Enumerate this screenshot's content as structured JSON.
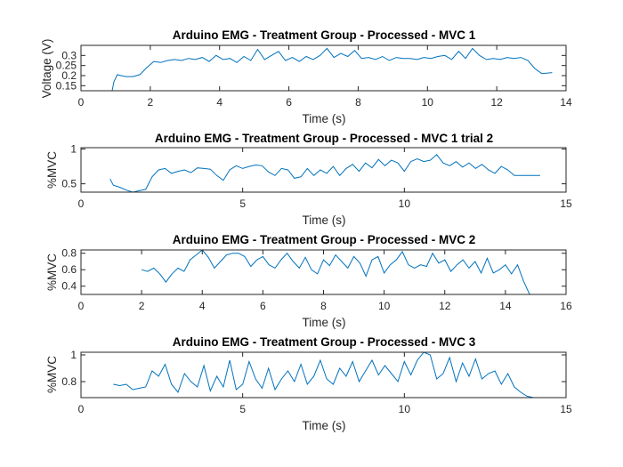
{
  "figure": {},
  "colors": {
    "line": "#0072BD",
    "axis": "#262626",
    "background": "#ffffff"
  },
  "chart_data": [
    {
      "type": "line",
      "title": "Arduino EMG - Treatment Group - Processed - MVC 1",
      "xlabel": "Time (s)",
      "ylabel": "Voltage (V)",
      "xlim": [
        0,
        14
      ],
      "ylim": [
        0.125,
        0.35
      ],
      "xticks": [
        0,
        2,
        4,
        6,
        8,
        10,
        12,
        14
      ],
      "yticks": [
        0.15,
        0.2,
        0.25,
        0.3
      ],
      "ytick_labels": [
        "0.15",
        "0.2",
        "0.25",
        "0.3"
      ],
      "grid": false,
      "series": [
        {
          "x": [
            0.9,
            0.95,
            1.05,
            1.15,
            1.3,
            1.5,
            1.7,
            1.9,
            2.1,
            2.3,
            2.5,
            2.7,
            2.9,
            3.1,
            3.3,
            3.5,
            3.7,
            3.9,
            4.1,
            4.3,
            4.5,
            4.7,
            4.9,
            5.1,
            5.3,
            5.5,
            5.7,
            5.9,
            6.1,
            6.3,
            6.5,
            6.7,
            6.9,
            7.1,
            7.3,
            7.5,
            7.7,
            7.9,
            8.1,
            8.3,
            8.5,
            8.7,
            8.9,
            9.1,
            9.3,
            9.5,
            9.7,
            9.9,
            10.1,
            10.3,
            10.5,
            10.7,
            10.9,
            11.1,
            11.3,
            11.5,
            11.7,
            11.9,
            12.1,
            12.3,
            12.5,
            12.7,
            12.9,
            13.1,
            13.3,
            13.6
          ],
          "y": [
            0.125,
            0.17,
            0.205,
            0.2,
            0.195,
            0.195,
            0.205,
            0.24,
            0.27,
            0.265,
            0.275,
            0.28,
            0.275,
            0.285,
            0.28,
            0.29,
            0.27,
            0.3,
            0.28,
            0.285,
            0.265,
            0.295,
            0.275,
            0.33,
            0.28,
            0.3,
            0.32,
            0.275,
            0.29,
            0.27,
            0.295,
            0.28,
            0.3,
            0.335,
            0.29,
            0.31,
            0.295,
            0.325,
            0.285,
            0.29,
            0.28,
            0.295,
            0.275,
            0.29,
            0.285,
            0.285,
            0.28,
            0.29,
            0.285,
            0.295,
            0.3,
            0.28,
            0.32,
            0.285,
            0.335,
            0.3,
            0.28,
            0.285,
            0.28,
            0.29,
            0.285,
            0.29,
            0.275,
            0.235,
            0.21,
            0.215
          ]
        }
      ]
    },
    {
      "type": "line",
      "title": "Arduino EMG - Treatment Group - Processed - MVC 1 trial 2",
      "xlabel": "Time (s)",
      "ylabel": "%MVC",
      "xlim": [
        0,
        15
      ],
      "ylim": [
        0.38,
        1.02
      ],
      "xticks": [
        0,
        5,
        10,
        15
      ],
      "yticks": [
        0.5,
        1
      ],
      "ytick_labels": [
        "0.5",
        "1"
      ],
      "grid": false,
      "series": [
        {
          "x": [
            0.9,
            1.0,
            1.2,
            1.4,
            1.6,
            1.8,
            2.0,
            2.2,
            2.4,
            2.6,
            2.8,
            3.0,
            3.2,
            3.4,
            3.6,
            3.8,
            4.0,
            4.2,
            4.4,
            4.6,
            4.8,
            5.0,
            5.2,
            5.4,
            5.6,
            5.8,
            6.0,
            6.2,
            6.4,
            6.6,
            6.8,
            7.0,
            7.2,
            7.4,
            7.6,
            7.8,
            8.0,
            8.2,
            8.4,
            8.6,
            8.8,
            9.0,
            9.2,
            9.4,
            9.6,
            9.8,
            10.0,
            10.2,
            10.4,
            10.6,
            10.8,
            11.0,
            11.2,
            11.4,
            11.6,
            11.8,
            12.0,
            12.2,
            12.4,
            12.6,
            12.8,
            13.0,
            13.2,
            13.4,
            13.6,
            13.8,
            14.0,
            14.2
          ],
          "y": [
            0.57,
            0.48,
            0.45,
            0.41,
            0.38,
            0.4,
            0.42,
            0.6,
            0.7,
            0.72,
            0.65,
            0.68,
            0.7,
            0.66,
            0.73,
            0.72,
            0.71,
            0.62,
            0.55,
            0.7,
            0.76,
            0.72,
            0.75,
            0.77,
            0.76,
            0.67,
            0.62,
            0.72,
            0.7,
            0.58,
            0.6,
            0.72,
            0.62,
            0.7,
            0.65,
            0.75,
            0.62,
            0.72,
            0.78,
            0.68,
            0.8,
            0.73,
            0.85,
            0.76,
            0.84,
            0.8,
            0.68,
            0.82,
            0.86,
            0.82,
            0.84,
            0.92,
            0.8,
            0.76,
            0.82,
            0.74,
            0.8,
            0.72,
            0.78,
            0.7,
            0.65,
            0.75,
            0.7,
            0.62,
            0.62,
            0.62,
            0.62,
            0.62
          ]
        }
      ]
    },
    {
      "type": "line",
      "title": "Arduino EMG - Treatment Group - Processed - MVC 2",
      "xlabel": "Time (s)",
      "ylabel": "%MVC",
      "xlim": [
        0,
        16
      ],
      "ylim": [
        0.3,
        0.84
      ],
      "xticks": [
        0,
        2,
        4,
        6,
        8,
        10,
        12,
        14,
        16
      ],
      "yticks": [
        0.4,
        0.6,
        0.8
      ],
      "ytick_labels": [
        "0.4",
        "0.6",
        "0.8"
      ],
      "grid": false,
      "series": [
        {
          "x": [
            2.0,
            2.2,
            2.4,
            2.6,
            2.8,
            3.0,
            3.2,
            3.4,
            3.6,
            3.8,
            4.0,
            4.2,
            4.4,
            4.6,
            4.8,
            5.0,
            5.2,
            5.4,
            5.6,
            5.8,
            6.0,
            6.2,
            6.4,
            6.6,
            6.8,
            7.0,
            7.2,
            7.4,
            7.6,
            7.8,
            8.0,
            8.2,
            8.4,
            8.6,
            8.8,
            9.0,
            9.2,
            9.4,
            9.6,
            9.8,
            10.0,
            10.2,
            10.4,
            10.6,
            10.8,
            11.0,
            11.2,
            11.4,
            11.6,
            11.8,
            12.0,
            12.2,
            12.4,
            12.6,
            12.8,
            13.0,
            13.2,
            13.4,
            13.6,
            13.8,
            14.0,
            14.2,
            14.4,
            14.6,
            14.8
          ],
          "y": [
            0.6,
            0.58,
            0.62,
            0.55,
            0.45,
            0.55,
            0.62,
            0.58,
            0.72,
            0.78,
            0.84,
            0.75,
            0.62,
            0.7,
            0.78,
            0.8,
            0.8,
            0.76,
            0.64,
            0.72,
            0.76,
            0.66,
            0.62,
            0.72,
            0.8,
            0.7,
            0.62,
            0.75,
            0.6,
            0.55,
            0.72,
            0.65,
            0.78,
            0.7,
            0.62,
            0.76,
            0.68,
            0.52,
            0.72,
            0.76,
            0.56,
            0.66,
            0.72,
            0.82,
            0.66,
            0.62,
            0.66,
            0.64,
            0.8,
            0.68,
            0.72,
            0.58,
            0.66,
            0.72,
            0.62,
            0.7,
            0.56,
            0.74,
            0.56,
            0.6,
            0.66,
            0.55,
            0.66,
            0.46,
            0.3
          ]
        }
      ]
    },
    {
      "type": "line",
      "title": "Arduino EMG - Treatment Group - Processed - MVC 3",
      "xlabel": "Time (s)",
      "ylabel": "%MVC",
      "xlim": [
        0,
        15
      ],
      "ylim": [
        0.68,
        1.02
      ],
      "xticks": [
        0,
        5,
        10,
        15
      ],
      "yticks": [
        0.8,
        1
      ],
      "ytick_labels": [
        "0.8",
        "1"
      ],
      "grid": false,
      "series": [
        {
          "x": [
            1.0,
            1.2,
            1.4,
            1.6,
            1.8,
            2.0,
            2.2,
            2.4,
            2.6,
            2.8,
            3.0,
            3.2,
            3.4,
            3.6,
            3.8,
            4.0,
            4.2,
            4.4,
            4.6,
            4.8,
            5.0,
            5.2,
            5.4,
            5.6,
            5.8,
            6.0,
            6.2,
            6.4,
            6.6,
            6.8,
            7.0,
            7.2,
            7.4,
            7.6,
            7.8,
            8.0,
            8.2,
            8.4,
            8.6,
            8.8,
            9.0,
            9.2,
            9.4,
            9.6,
            9.8,
            10.0,
            10.2,
            10.4,
            10.6,
            10.8,
            11.0,
            11.2,
            11.4,
            11.6,
            11.8,
            12.0,
            12.2,
            12.4,
            12.6,
            12.8,
            13.0,
            13.2,
            13.4,
            13.6,
            13.8,
            14.0
          ],
          "y": [
            0.78,
            0.77,
            0.78,
            0.74,
            0.75,
            0.76,
            0.88,
            0.84,
            0.93,
            0.78,
            0.72,
            0.86,
            0.8,
            0.76,
            0.92,
            0.73,
            0.84,
            0.76,
            0.96,
            0.74,
            0.78,
            0.95,
            0.82,
            0.75,
            0.9,
            0.74,
            0.82,
            0.88,
            0.8,
            0.93,
            0.78,
            0.84,
            0.96,
            0.82,
            0.78,
            0.9,
            0.84,
            0.95,
            0.8,
            0.88,
            0.96,
            0.85,
            0.92,
            0.86,
            0.8,
            0.95,
            0.85,
            0.96,
            1.02,
            1.0,
            0.82,
            0.86,
            0.98,
            0.8,
            0.94,
            0.84,
            0.97,
            0.82,
            0.86,
            0.88,
            0.78,
            0.86,
            0.76,
            0.72,
            0.69,
            0.68
          ]
        }
      ]
    }
  ]
}
